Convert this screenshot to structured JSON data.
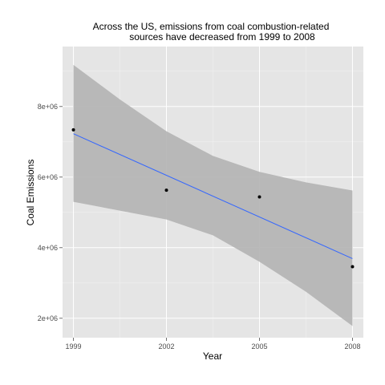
{
  "chart_data": {
    "type": "scatter",
    "title_lines": [
      "Across the US, emissions from coal combustion-related",
      "sources have decreased from 1999 to 2008"
    ],
    "xlabel": "Year",
    "ylabel": "Coal Emissions",
    "x_ticks": [
      1999,
      2002,
      2005,
      2008
    ],
    "x_tick_labels": [
      "1999",
      "2002",
      "2005",
      "2008"
    ],
    "y_ticks": [
      2000000,
      4000000,
      6000000,
      8000000
    ],
    "y_tick_labels": [
      "2e+06",
      "4e+06",
      "6e+06",
      "8e+06"
    ],
    "xlim": [
      1998.65,
      2008.35
    ],
    "ylim": [
      1450000,
      9700000
    ],
    "points": [
      {
        "x": 1999,
        "y": 7340000
      },
      {
        "x": 2002,
        "y": 5630000
      },
      {
        "x": 2005,
        "y": 5440000
      },
      {
        "x": 2008,
        "y": 3460000
      }
    ],
    "fit": {
      "method": "linear regression",
      "line": [
        {
          "x": 1999,
          "y": 7230000
        },
        {
          "x": 2008,
          "y": 3690000
        }
      ],
      "confidence_band": [
        {
          "x": 1999,
          "lower": 5300000,
          "upper": 9180000
        },
        {
          "x": 2000.5,
          "lower": 5050000,
          "upper": 8200000
        },
        {
          "x": 2002,
          "lower": 4800000,
          "upper": 7300000
        },
        {
          "x": 2003.5,
          "lower": 4350000,
          "upper": 6600000
        },
        {
          "x": 2005,
          "lower": 3600000,
          "upper": 6150000
        },
        {
          "x": 2006.5,
          "lower": 2750000,
          "upper": 5850000
        },
        {
          "x": 2008,
          "lower": 1780000,
          "upper": 5620000
        }
      ]
    },
    "colors": {
      "panel_background": "#e5e5e5",
      "grid_major": "#ffffff",
      "grid_minor": "#f2f2f2",
      "band": "#b3b3b3",
      "fit_line": "#3366ff",
      "point": "#000000"
    },
    "grid": true,
    "legend": "none"
  }
}
